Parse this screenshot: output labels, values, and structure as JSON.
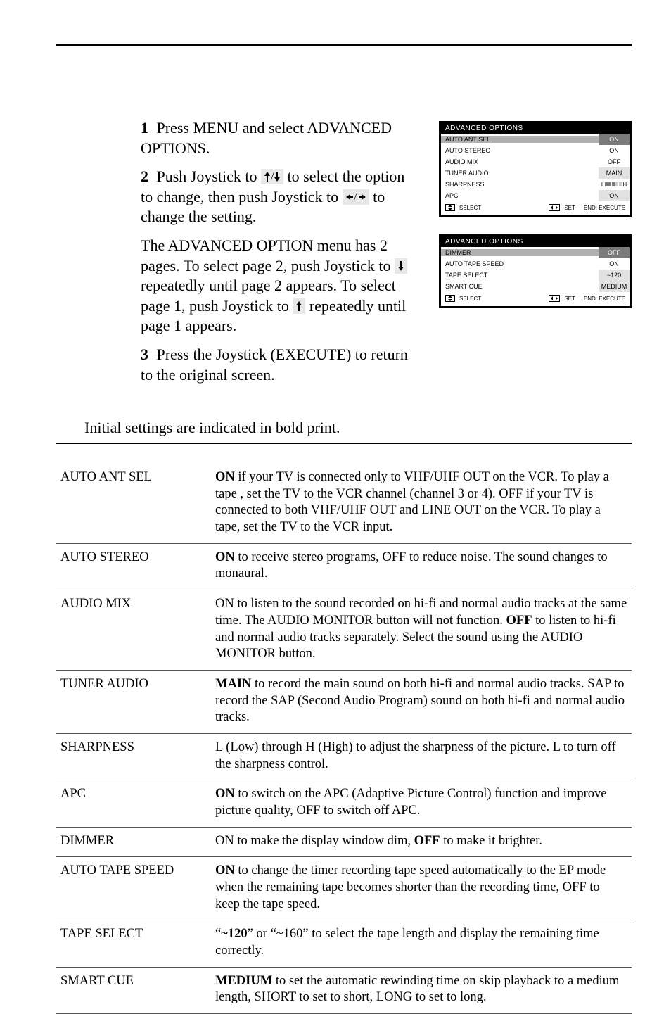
{
  "intro": {
    "steps": [
      {
        "num": "1",
        "text": "Press MENU and select ADVANCED OPTIONS."
      },
      {
        "num": "2",
        "text_pre": "Push Joystick to ",
        "text_mid": " to select the option to change, then push Joystick to ",
        "text_post": " to change the setting."
      },
      {
        "num": "",
        "para1a": "The ADVANCED OPTION menu has 2 pages. To select page 2, push Joystick to ",
        "para1b": " repeatedly until page 2 appears. To select page 1, push Joystick to ",
        "para1c": " repeatedly until page 1 appears."
      },
      {
        "num": "3",
        "text": "Press the Joystick (EXECUTE) to return to the original screen."
      }
    ]
  },
  "initial_line": "Initial settings are indicated in bold print.",
  "menu1": {
    "title": "ADVANCED   OPTIONS",
    "rows": [
      {
        "label": "AUTO ANT SEL",
        "val": "ON",
        "sel": true
      },
      {
        "label": "AUTO STEREO",
        "val": "ON"
      },
      {
        "label": "AUDIO MIX",
        "val": "OFF"
      },
      {
        "label": "TUNER AUDIO",
        "val": "MAIN",
        "alt": true
      },
      {
        "label": "SHARPNESS",
        "val": "",
        "sharp": true
      },
      {
        "label": "APC",
        "val": "ON",
        "alt": true
      }
    ],
    "bottom_left": "SELECT",
    "bottom_mid": "SET",
    "bottom_right": "END: EXECUTE"
  },
  "menu2": {
    "title": "ADVANCED   OPTIONS",
    "rows": [
      {
        "label": "DIMMER",
        "val": "OFF",
        "sel": true
      },
      {
        "label": "AUTO TAPE SPEED",
        "val": "ON"
      },
      {
        "label": "TAPE SELECT",
        "val": "~120",
        "alt": true
      },
      {
        "label": "SMART CUE",
        "val": "MEDIUM",
        "alt": true
      }
    ],
    "bottom_left": "SELECT",
    "bottom_mid": "SET",
    "bottom_right": "END: EXECUTE"
  },
  "options": [
    {
      "key": "AUTO ANT SEL",
      "desc_parts": [
        "ON",
        " if your TV is connected only to VHF/UHF OUT on the VCR.  To play a tape , set the TV to the VCR channel (channel 3 or 4).  OFF if your TV is connected to both VHF/UHF OUT and LINE OUT on the VCR.  To play a tape, set the TV to the VCR input."
      ]
    },
    {
      "key": "AUTO STEREO",
      "desc_parts": [
        "ON",
        " to receive stereo programs, OFF to reduce noise.  The sound changes to monaural."
      ]
    },
    {
      "key": "AUDIO MIX",
      "desc_parts": [
        "ON to listen to the sound recorded on hi-fi and normal audio tracks at the same time.  The AUDIO MONITOR button will not function.  ",
        "OFF",
        " to listen to hi-fi and normal audio tracks separately.  Select the sound using the AUDIO MONITOR button."
      ]
    },
    {
      "key": "TUNER AUDIO",
      "desc_parts": [
        "MAIN",
        " to record the main sound on both hi-fi and normal audio tracks.  SAP to record the SAP (Second Audio Program) sound on both hi-fi and normal audio tracks."
      ]
    },
    {
      "key": "SHARPNESS",
      "desc_parts": [
        "L (Low) through H (High) to adjust the sharpness of the picture.  L to turn off the sharpness control."
      ]
    },
    {
      "key": "APC",
      "desc_parts": [
        "ON",
        " to switch on the APC (Adaptive Picture Control) function and improve picture quality, OFF to switch off APC."
      ]
    },
    {
      "key": "DIMMER",
      "desc_parts": [
        "ON to make the display window dim, ",
        "OFF",
        " to make it brighter."
      ]
    },
    {
      "key": "AUTO TAPE SPEED",
      "desc_parts": [
        "ON",
        " to change the timer recording tape speed automatically to the EP mode when the remaining tape becomes shorter than the recording time, OFF to keep the tape speed."
      ]
    },
    {
      "key": "TAPE SELECT",
      "desc_parts": [
        "“",
        "~120",
        "” or “~160” to select the tape length and display the remaining time correctly."
      ]
    },
    {
      "key": "SMART CUE",
      "desc_parts": [
        "MEDIUM",
        " to set the automatic rewinding time on skip playback to a medium length, SHORT to set to short, LONG to set to long."
      ]
    }
  ],
  "colors": {
    "text": "#000000",
    "bg": "#ffffff",
    "menu_sel_label_bg": "#b0b0b0",
    "menu_sel_val_bg": "#7a7a7a",
    "menu_alt_val_bg": "#e2e2e2"
  }
}
